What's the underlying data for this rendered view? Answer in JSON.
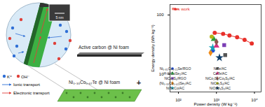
{
  "diagram": {
    "inset_scale": "5 nm",
    "cathode": "Active carbon @ Ni foam",
    "anode": "Ni₀.₃₃Co₀.₆₇Te @ Ni foam",
    "operator": "+",
    "legend": [
      {
        "label": "K⁺",
        "color": "#2f6fd6"
      },
      {
        "label": "OH⁻",
        "color": "#e0403a"
      },
      {
        "label": "Ionic transport",
        "color": "#2f6fd6"
      },
      {
        "label": "Electronic transport",
        "color": "#e0403a"
      }
    ]
  },
  "chart_data": {
    "type": "scatter",
    "xlabel": "Power density (W kg⁻¹)",
    "ylabel": "Energy density (Wh kg⁻¹)",
    "log": true,
    "xlim": [
      60,
      15000
    ],
    "ylim": [
      5,
      150
    ],
    "xticks": [
      {
        "value": 100,
        "label": "10²"
      },
      {
        "value": 1000,
        "label": "10³"
      },
      {
        "value": 10000,
        "label": "10⁴"
      }
    ],
    "yticks": [
      10,
      100
    ],
    "grid": false,
    "legend": "lower left",
    "series": [
      {
        "name": "This work",
        "type": "line",
        "color": "#e8302a",
        "marker": "circle",
        "x": [
          900,
          1500,
          2200,
          3500,
          5500,
          8500
        ],
        "values": [
          50,
          48,
          45,
          42,
          38,
          33
        ]
      },
      {
        "name": "Ni₀.₈₅Co₀.₁₅Se/RGO",
        "color": "#1f4fd8",
        "marker": "circle",
        "x": [
          800
        ],
        "values": [
          25
        ]
      },
      {
        "name": "H-NiCoSe₂/AC",
        "color": "#2e9e3e",
        "marker": "triangle",
        "x": [
          850
        ],
        "values": [
          39
        ]
      },
      {
        "name": "NiCo₂S₄/RGO",
        "color": "#7b3fb5",
        "marker": "square",
        "x": [
          1600
        ],
        "values": [
          31
        ]
      },
      {
        "name": "(Ni₀.₃₃Co₀.₆₇)Se₂/AC",
        "color": "#f08c1a",
        "marker": "diamond",
        "x": [
          700
        ],
        "values": [
          23
        ]
      },
      {
        "name": "NiTe:Co/AC",
        "color": "#17a2b8",
        "marker": "star",
        "x": [
          800
        ],
        "values": [
          28
        ]
      },
      {
        "name": "NiTe/AC",
        "color": "#555555",
        "marker": "square",
        "x": [
          1700
        ],
        "values": [
          21
        ]
      },
      {
        "name": "CoTe/AC",
        "color": "#d63384",
        "marker": "triangle",
        "x": [
          1000
        ],
        "values": [
          30
        ]
      },
      {
        "name": "NiCo₂S₄/Co₉S₈/AC",
        "color": "#8c564b",
        "marker": "diamond",
        "x": [
          1000
        ],
        "values": [
          35
        ]
      },
      {
        "name": "NiCo₂S₄/AC",
        "color": "#b5b517",
        "marker": "circle",
        "x": [
          750
        ],
        "values": [
          43
        ]
      },
      {
        "name": "NiO/Ni₃S₂/AC",
        "color": "#0d3b66",
        "marker": "star",
        "x": [
          1200
        ],
        "values": [
          19
        ]
      }
    ]
  }
}
